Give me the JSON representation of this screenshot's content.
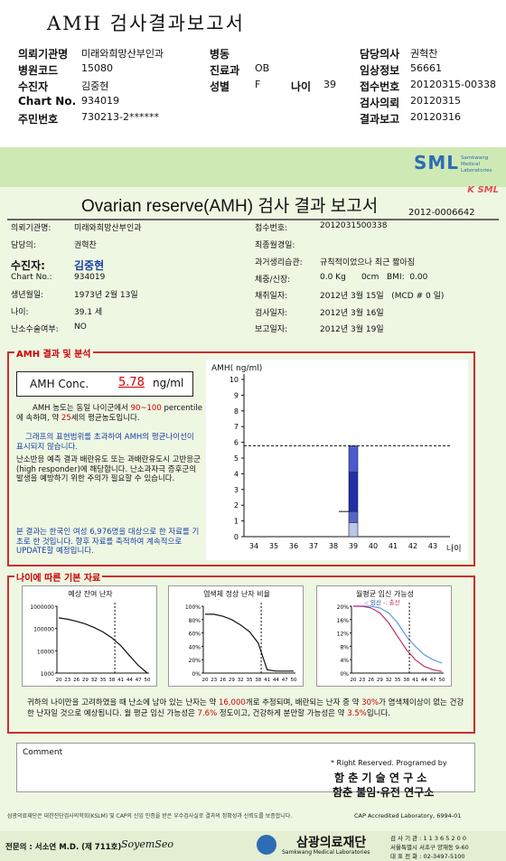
{
  "header": {
    "title": "AMH 검사결과보고서",
    "rows": [
      {
        "l1": "의뢰기관명",
        "v1": "미래와희망산부인과",
        "l2": "병동",
        "v2": "",
        "l3": "담당의사",
        "v3": "권혁찬"
      },
      {
        "l1": "병원코드",
        "v1": "15080",
        "l2": "진료과",
        "v2": "OB",
        "l3": "임상정보",
        "v3": "56661"
      },
      {
        "l1": "수진자",
        "v1": "김중현",
        "l2": "성별",
        "v2": "F",
        "l2b": "나이",
        "v2b": "39",
        "l3": "접수번호",
        "v3": "20120315-00338"
      },
      {
        "l1": "Chart No.",
        "v1": "934019",
        "l2": "",
        "v2": "",
        "l3": "검사의뢰",
        "v3": "20120315"
      },
      {
        "l1": "주민번호",
        "v1": "730213-2******",
        "l2": "",
        "v2": "",
        "l3": "결과보고",
        "v3": "20120316"
      }
    ]
  },
  "brand": {
    "logo": "SML",
    "sub": "Samkwang Medical Laboratories",
    "title_tag": "K SML"
  },
  "report": {
    "title": "Ovarian reserve(AMH) 검사 결과 보고서",
    "number": "2012-0006642",
    "left": [
      {
        "label": "의뢰기관명:",
        "value": "미래와희망산부인과"
      },
      {
        "label": "담당의:",
        "value": "권혁찬"
      },
      {
        "label": "수진자:",
        "value": "김중현"
      },
      {
        "label": "Chart No.:",
        "value": "934019"
      },
      {
        "label": "생년월일:",
        "value": "1973년 2월 13일"
      },
      {
        "label": "나이:",
        "value": "39.1 세"
      },
      {
        "label": "난소수술여부:",
        "value": "NO"
      }
    ],
    "right": [
      {
        "label": "접수번호:",
        "value": "2012031500338"
      },
      {
        "label": "최종월경일:",
        "value": ""
      },
      {
        "label": "과거생리습관:",
        "value": "규칙적이었으나 최근 짧아짐"
      },
      {
        "label": "체중/신장:",
        "value": "0.0 Kg      0cm   BMI:  0.00"
      },
      {
        "label": "채취일자:",
        "value": "2012년 3월 15일   (MCD # 0 일)"
      },
      {
        "label": "검사일자:",
        "value": "2012년 3월 16일"
      },
      {
        "label": "보고일자:",
        "value": "2012년 3월 19일"
      }
    ]
  },
  "amh": {
    "section_title": "AMH 결과 및 분석",
    "conc_label": "AMH Conc.",
    "conc_value": "5.78",
    "conc_unit": "ng/ml",
    "p1a": "AMH 농도는 동일 나이군에서",
    "p1b": "90~100",
    "p1c": "percentile에 속하며, 약",
    "p1d": "25",
    "p1e": "세의 평균농도입니다.",
    "p2": "그래프의 표현범위를 초과하여 AMH의 평균나이선이 표시되지 않습니다.",
    "p3": "난소반응 예측 결과 배란유도 또는 과배란유도시 고반응군 (high responder)에 해당합니다. 난소과자극 증후군의 발생을 예방하기 위한 주의가 필요할 수 있습니다.",
    "p4": "본 결과는 한국인 여성 6,976명을 대상으로 한 자료를 기초로 한 것입니다. 향후 자료를 축적하여 계속적으로 UPDATE할 예정입니다."
  },
  "chart_data": [
    {
      "type": "bar",
      "title": "",
      "ylabel": "AMH( ng/ml)",
      "xlabel": "나이",
      "x": [
        34,
        35,
        36,
        37,
        38,
        39,
        40,
        41,
        42,
        43
      ],
      "ylim": [
        0,
        10
      ],
      "patient_value": 5.78,
      "patient_age": 39,
      "bar_segments": [
        {
          "from": 0,
          "to": 0.9,
          "color": "#bcc6e8"
        },
        {
          "from": 0.9,
          "to": 1.6,
          "color": "#5566c8"
        },
        {
          "from": 1.6,
          "to": 4.1,
          "color": "#1f2fa8"
        },
        {
          "from": 4.1,
          "to": 5.78,
          "color": "#4b5ad0"
        }
      ],
      "mean_marker": 1.6
    },
    {
      "type": "line",
      "title": "예상 잔여 난자",
      "x": [
        20,
        23,
        26,
        29,
        32,
        35,
        38,
        41,
        44,
        47,
        50
      ],
      "y": [
        300000,
        260000,
        210000,
        160000,
        110000,
        70000,
        38000,
        17000,
        6000,
        2200,
        1000
      ],
      "yscale": "log",
      "yticks": [
        "1000000",
        "100000",
        "10000",
        "1000"
      ],
      "marker_age": 39
    },
    {
      "type": "line",
      "title": "염색체 정상 난자 비율",
      "x": [
        20,
        23,
        26,
        29,
        32,
        35,
        38,
        41,
        44,
        47,
        50
      ],
      "y": [
        88,
        88,
        85,
        80,
        72,
        62,
        45,
        5,
        3,
        3,
        3
      ],
      "ylim": [
        0,
        100
      ],
      "yticks": [
        "100%",
        "80%",
        "60%",
        "40%",
        "20%",
        "0%"
      ],
      "marker_age": 39
    },
    {
      "type": "line",
      "title": "월평균 임신 가능성",
      "legend": [
        "-: 임신",
        "-: 출산"
      ],
      "x": [
        20,
        23,
        26,
        29,
        32,
        35,
        38,
        41,
        44,
        47,
        50
      ],
      "series": [
        {
          "name": "임신",
          "color": "#5c9be0",
          "values": [
            20,
            20,
            20,
            19.5,
            18,
            15,
            11,
            8,
            5.5,
            4,
            3
          ]
        },
        {
          "name": "출산",
          "color": "#c0306a",
          "values": [
            20,
            20,
            19.5,
            18,
            15,
            11,
            7,
            4,
            2,
            1,
            0.5
          ]
        }
      ],
      "ylim": [
        0,
        20
      ],
      "yticks": [
        "20%",
        "16%",
        "12%",
        "8%",
        "4%",
        "0%"
      ],
      "marker_age": 39
    }
  ],
  "age_basics": {
    "section_title": "나이에 따른 기본 자료",
    "xticks": "20 23 26 29 32 35 38 41 44 47 50",
    "summary_a": "귀하의 나이만을 고려하였을 때 난소에 남아 있는 난자는 약",
    "summary_b": "16,000",
    "summary_c": "개로 추정되며, 배란되는 난자 중 약",
    "summary_d": "30%",
    "summary_e": "가 염색체이상이 없는 건강한 난자일 것으로 예상됩니다. 월 평균 임신 가능성은",
    "summary_f": "7.6%",
    "summary_g": "정도이고, 건강하게 분만할 가능성은 약",
    "summary_h": "3.5%",
    "summary_i": "입니다."
  },
  "comment": {
    "label": "Comment"
  },
  "footer": {
    "rights": "* Right Reserved. Programed by",
    "org1": "함 춘 기 술 연 구 소",
    "org2": "함춘 불임·유전 연구소",
    "note": "삼광의료재단은 대한진단검사의학회(KSLM) 및 CAP의 신임 인증을 받은 우수검사실로 결과의 정확성과 신뢰도를 보증합니다.",
    "cap": "CAP  Accredited  Laboratory,  6994-01",
    "doctor": "전문의 : 서소연 M.D. (제 711호)",
    "signature": "SoyemSeo",
    "lab": "삼광의료재단",
    "lab_en": "Samkwang Medical Laboratories",
    "contact1": "검 사 기 관 : 1 1 3 6 5 2 0 0",
    "contact2": "서울특별시 서초구 양재동 9-60",
    "contact3": "대 표 전 화 : 02-3497-5100"
  }
}
